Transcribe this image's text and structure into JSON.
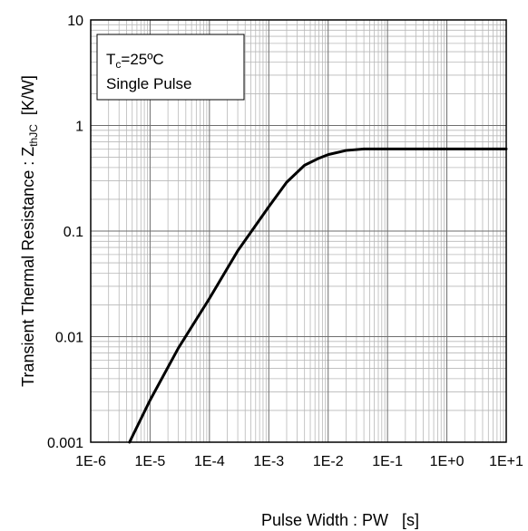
{
  "chart_data": {
    "type": "line",
    "x_scale": "log",
    "y_scale": "log",
    "xlim": [
      1e-06,
      10
    ],
    "ylim": [
      0.001,
      10
    ],
    "x_ticks": [
      "1E-6",
      "1E-5",
      "1E-4",
      "1E-3",
      "1E-2",
      "1E-1",
      "1E+0",
      "1E+1"
    ],
    "y_ticks": [
      "10",
      "1",
      "0.1",
      "0.01",
      "0.001"
    ],
    "xlabel": "Pulse Width : PW   [s]",
    "ylabel": {
      "main": "Transient Thermal  Resistance : Z",
      "sub": "thJC",
      "unit": "  [K/W]"
    },
    "annotation": {
      "line1_main": "T",
      "line1_sub": "c",
      "line1_rest": "=25ºC",
      "line2": "Single Pulse"
    },
    "grid": true,
    "series": [
      {
        "color": "#000000",
        "x": [
          4.5e-06,
          1e-05,
          3e-05,
          0.0001,
          0.0003,
          0.001,
          0.002,
          0.004,
          0.007,
          0.01,
          0.02,
          0.04,
          0.07,
          0.1,
          1,
          10
        ],
        "y": [
          0.001,
          0.0025,
          0.0078,
          0.023,
          0.065,
          0.17,
          0.29,
          0.42,
          0.49,
          0.53,
          0.58,
          0.6,
          0.6,
          0.6,
          0.6,
          0.6
        ]
      }
    ]
  }
}
